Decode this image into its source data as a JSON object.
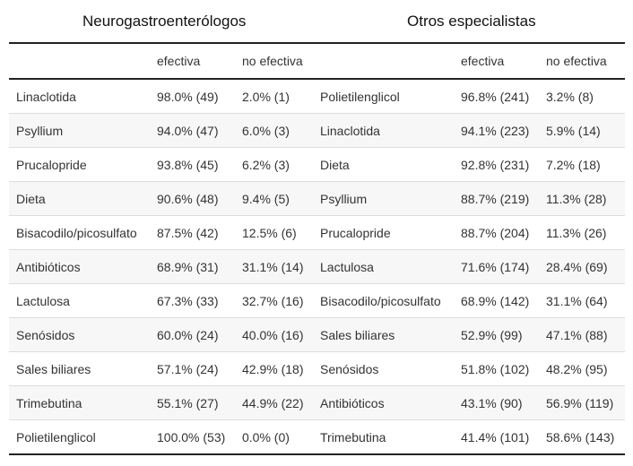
{
  "header": {
    "group_left": "Neurogastroenterólogos",
    "group_right": "Otros especialistas"
  },
  "columns": [
    "",
    "efectiva",
    "no efectiva",
    "",
    "efectiva",
    "no efectiva"
  ],
  "rows": [
    [
      "Linaclotida",
      "98.0% (49)",
      "2.0% (1)",
      "Polietilenglicol",
      "96.8% (241)",
      "3.2% (8)"
    ],
    [
      "Psyllium",
      "94.0% (47)",
      "6.0% (3)",
      "Linaclotida",
      "94.1% (223)",
      "5.9% (14)"
    ],
    [
      "Prucalopride",
      "93.8% (45)",
      "6.2% (3)",
      "Dieta",
      "92.8% (231)",
      "7.2% (18)"
    ],
    [
      "Dieta",
      "90.6% (48)",
      "9.4% (5)",
      "Psyllium",
      "88.7% (219)",
      "11.3% (28)"
    ],
    [
      "Bisacodilo/picosulfato",
      "87.5% (42)",
      "12.5% (6)",
      "Prucalopride",
      "88.7% (204)",
      "11.3% (26)"
    ],
    [
      "Antibióticos",
      "68.9% (31)",
      "31.1% (14)",
      "Lactulosa",
      "71.6% (174)",
      "28.4% (69)"
    ],
    [
      "Lactulosa",
      "67.3% (33)",
      "32.7% (16)",
      "Bisacodilo/picosulfato",
      "68.9% (142)",
      "31.1% (64)"
    ],
    [
      "Senósidos",
      "60.0% (24)",
      "40.0% (16)",
      "Sales biliares",
      "52.9% (99)",
      "47.1% (88)"
    ],
    [
      "Sales biliares",
      "57.1% (24)",
      "42.9% (18)",
      "Senósidos",
      "51.8% (102)",
      "48.2% (95)"
    ],
    [
      "Trimebutina",
      "55.1% (27)",
      "44.9% (22)",
      "Antibióticos",
      "43.1% (90)",
      "56.9% (119)"
    ],
    [
      "Polietilenglicol",
      "100.0% (53)",
      "0.0% (0)",
      "Trimebutina",
      "41.4% (101)",
      "58.6% (143)"
    ]
  ]
}
